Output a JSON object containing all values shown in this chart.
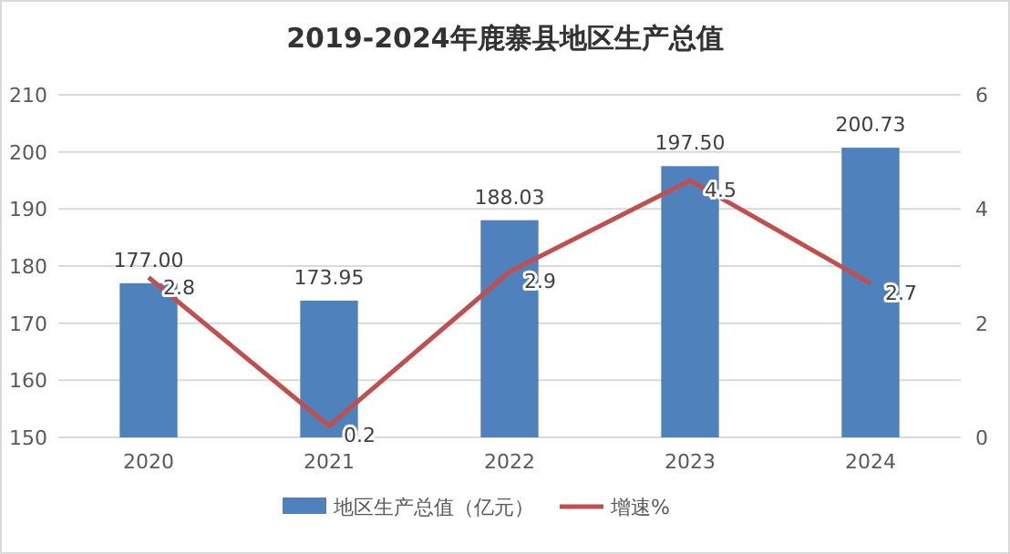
{
  "chart_data": {
    "type": "bar",
    "title": "2019-2024年鹿寨县地区生产总值",
    "categories": [
      "2020",
      "2021",
      "2022",
      "2023",
      "2024"
    ],
    "series": [
      {
        "name": "地区生产总值（亿元）",
        "color": "#4f81bd",
        "values": [
          177.0,
          173.95,
          188.03,
          197.5,
          200.73
        ],
        "value_labels": [
          "177.00",
          "173.95",
          "188.03",
          "197.50",
          "200.73"
        ]
      },
      {
        "name": "增速%",
        "type": "line",
        "axis": "y2",
        "color": "#c0504d",
        "values": [
          2.8,
          0.2,
          2.9,
          4.5,
          2.7
        ],
        "value_labels": [
          "2.8",
          "0.2",
          "2.9",
          "4.5",
          "2.7"
        ]
      }
    ],
    "ylim": [
      150,
      210
    ],
    "yticks": [
      150,
      160,
      170,
      180,
      190,
      200,
      210
    ],
    "y2lim": [
      0,
      6
    ],
    "y2ticks": [
      0,
      2,
      4,
      6
    ],
    "grid": "y",
    "legend": "bottom",
    "marker": "none",
    "line_style": "solid"
  }
}
